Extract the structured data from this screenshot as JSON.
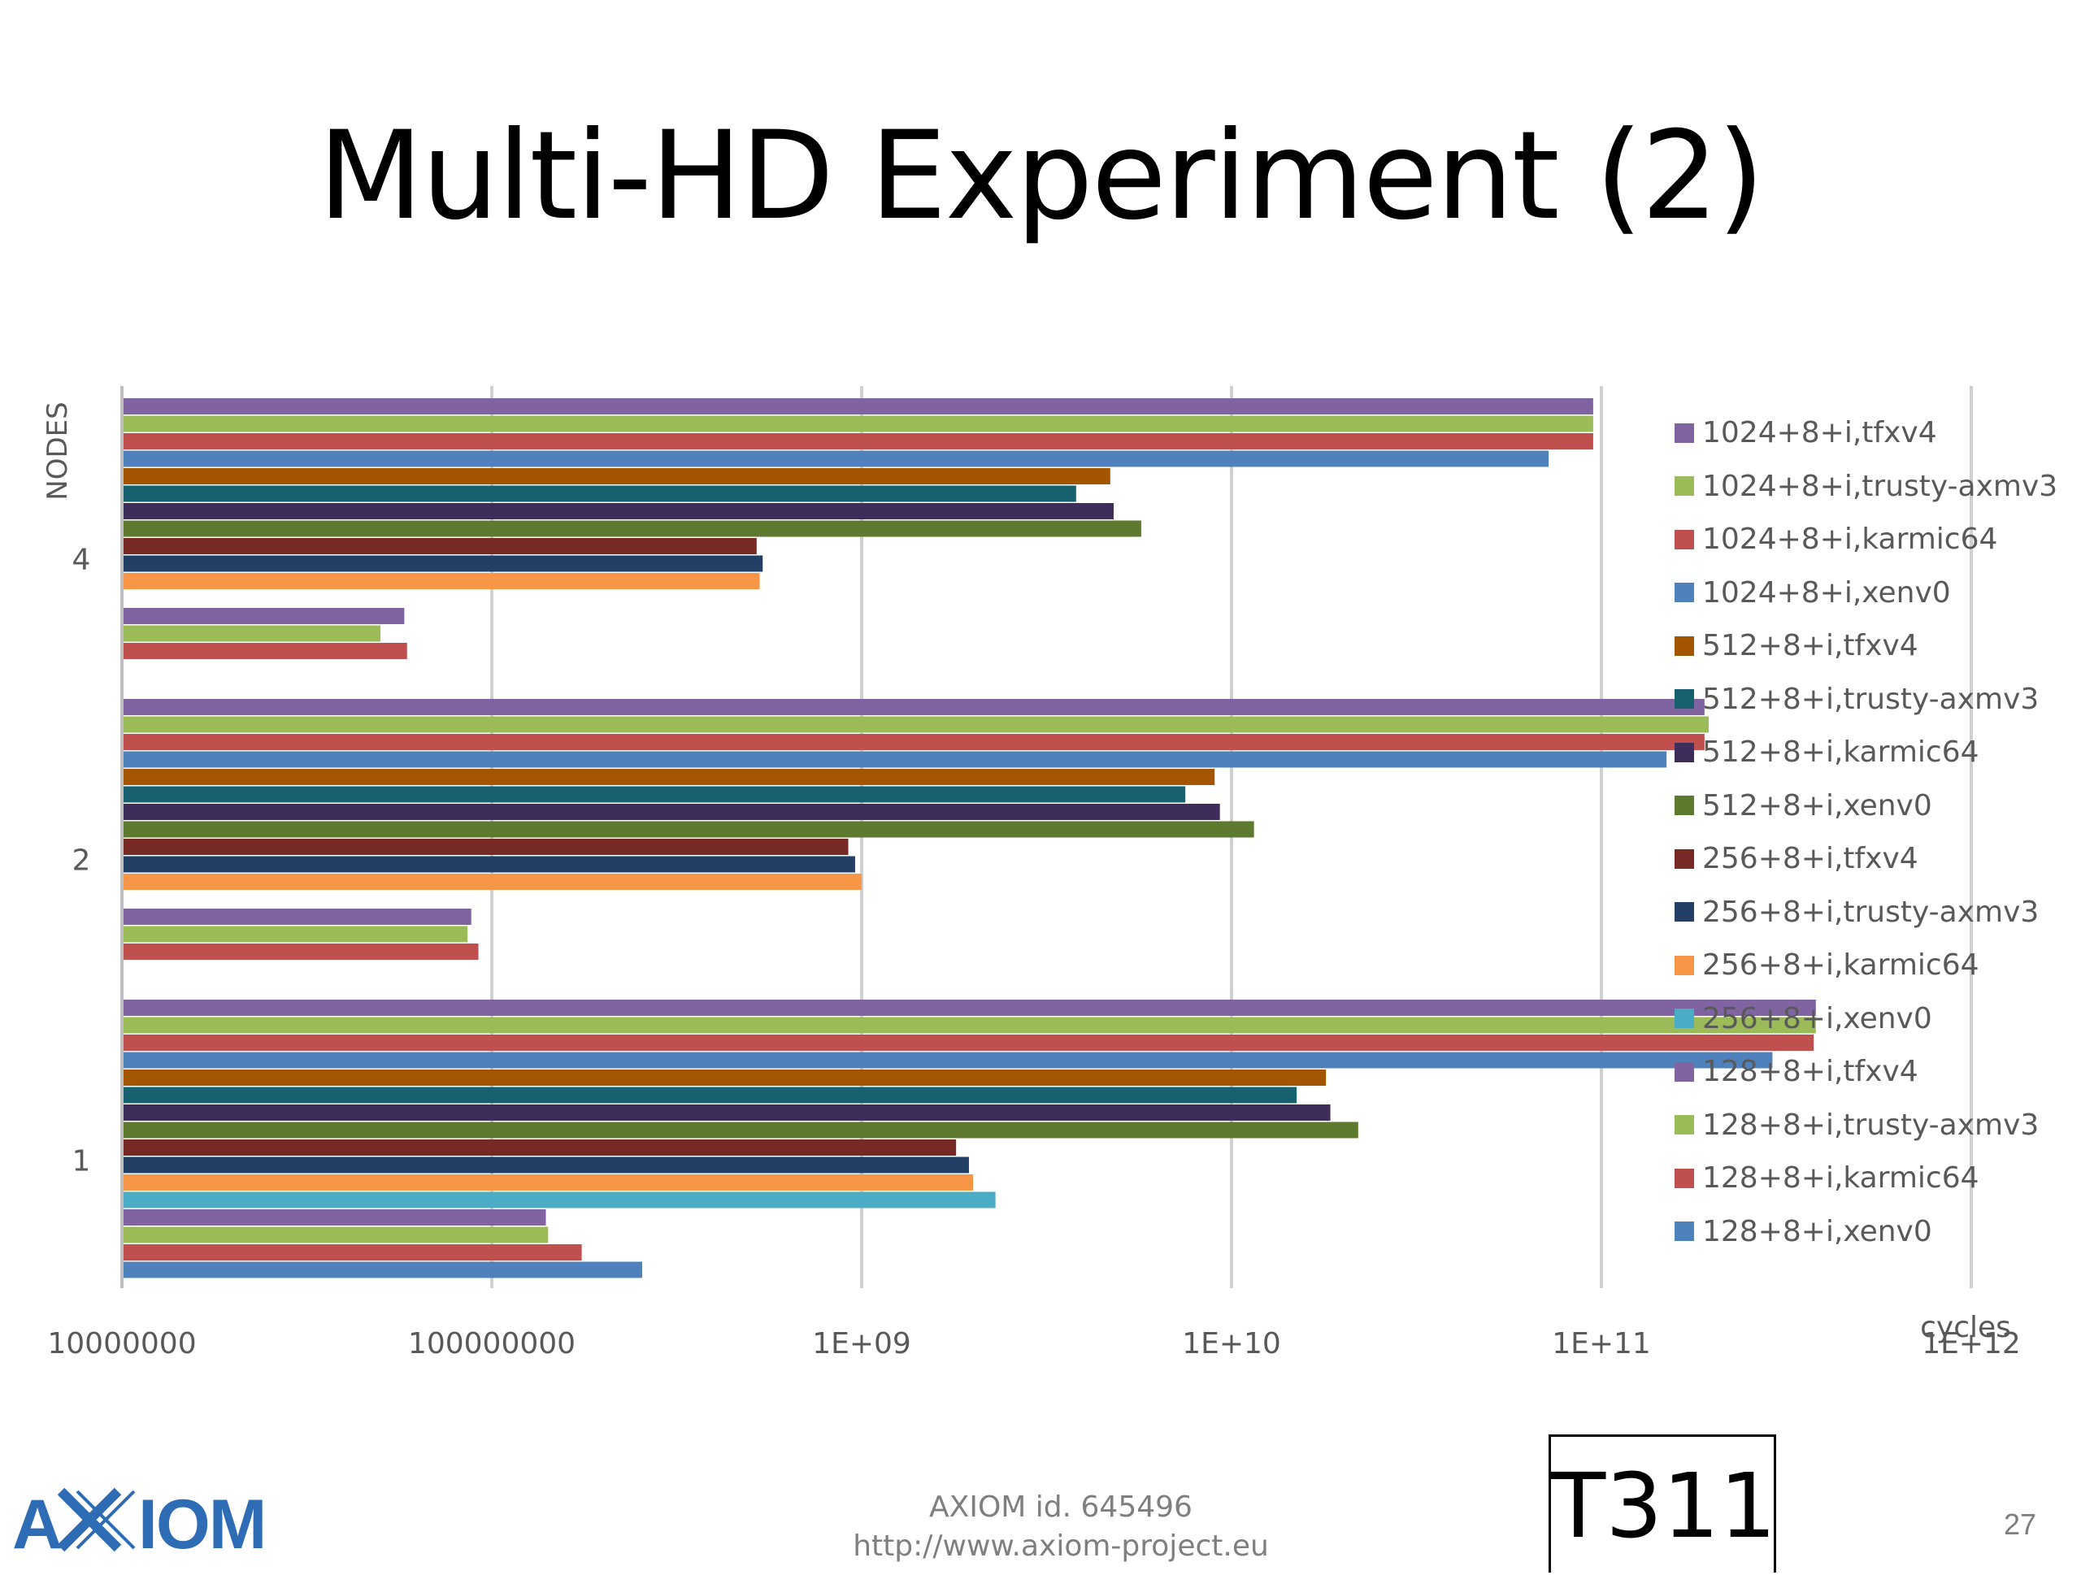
{
  "slide": {
    "title": "Multi-HD Experiment (2)",
    "footer_id": "AXIOM id. 645496",
    "footer_url": "http://www.axiom-project.eu",
    "tag": "T311",
    "page_number": "27",
    "logo_text": "AXIOM"
  },
  "chart_data": {
    "type": "bar",
    "orientation": "horizontal",
    "x_scale": "log",
    "xlim": [
      10000000,
      2000000000000
    ],
    "x_ticks": [
      "10000000",
      "100000000",
      "1E+09",
      "1E+10",
      "1E+11",
      "1E+12"
    ],
    "x_tick_values": [
      10000000,
      100000000,
      1000000000,
      10000000000,
      100000000000,
      1000000000000
    ],
    "xlabel": "cycles",
    "ylabel": "NODES",
    "categories": [
      "1",
      "2",
      "4"
    ],
    "grid": true,
    "legend_position": "right",
    "series": [
      {
        "name": "1024+8+i,tfxv4",
        "color": "#8064A2",
        "values": [
          380000000000,
          190000000000,
          95000000000
        ]
      },
      {
        "name": "1024+8+i,trusty-axmv3",
        "color": "#9BBB59",
        "values": [
          380000000000,
          195000000000,
          95000000000
        ]
      },
      {
        "name": "1024+8+i,karmic64",
        "color": "#C0504D",
        "values": [
          375000000000,
          190000000000,
          95000000000
        ]
      },
      {
        "name": "1024+8+i,xenv0",
        "color": "#4F81BD",
        "values": [
          290000000000,
          150000000000,
          72000000000
        ]
      },
      {
        "name": "512+8+i,tfxv4",
        "color": "#A35500",
        "values": [
          18000000000,
          9000000000,
          4700000000
        ]
      },
      {
        "name": "512+8+i,trusty-axmv3",
        "color": "#17606E",
        "values": [
          15000000000,
          7500000000,
          3800000000
        ]
      },
      {
        "name": "512+8+i,karmic64",
        "color": "#3E2C5A",
        "values": [
          18500000000,
          9300000000,
          4800000000
        ]
      },
      {
        "name": "512+8+i,xenv0",
        "color": "#5E7A2E",
        "values": [
          22000000000,
          11500000000,
          5700000000
        ]
      },
      {
        "name": "256+8+i,tfxv4",
        "color": "#772926",
        "values": [
          1800000000,
          920000000,
          520000000
        ]
      },
      {
        "name": "256+8+i,trusty-axmv3",
        "color": "#243F66",
        "values": [
          1950000000,
          960000000,
          540000000
        ]
      },
      {
        "name": "256+8+i,karmic64",
        "color": "#F79646",
        "values": [
          2000000000,
          1000000000,
          530000000
        ]
      },
      {
        "name": "256+8+i,xenv0",
        "color": "#4BACC6",
        "values": [
          2300000000,
          null,
          null
        ]
      },
      {
        "name": "128+8+i,tfxv4",
        "color": "#8064A2",
        "values": [
          140000000,
          88000000,
          58000000
        ]
      },
      {
        "name": "128+8+i,trusty-axmv3",
        "color": "#9BBB59",
        "values": [
          142000000,
          86000000,
          50000000
        ]
      },
      {
        "name": "128+8+i,karmic64",
        "color": "#C0504D",
        "values": [
          175000000,
          92000000,
          59000000
        ]
      },
      {
        "name": "128+8+i,xenv0",
        "color": "#4F81BD",
        "values": [
          255000000,
          null,
          null
        ]
      }
    ]
  }
}
